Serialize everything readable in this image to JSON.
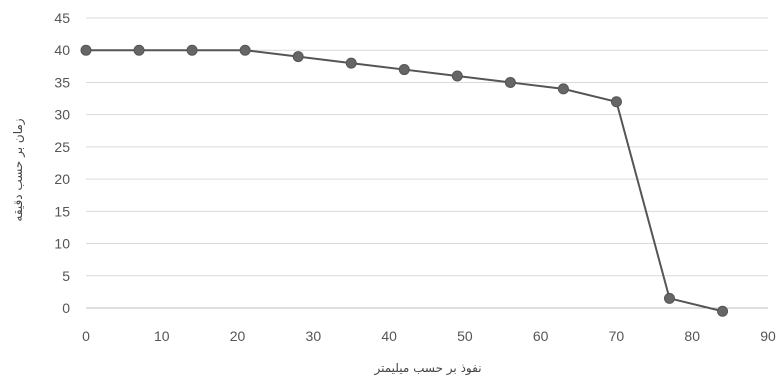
{
  "chart_data": {
    "type": "line",
    "xlabel": "نفوذ بر حسب میلیمتر",
    "ylabel": "زمان بر حسب دقیقه",
    "xlim": [
      0,
      90
    ],
    "ylim": [
      0,
      45
    ],
    "xticks": [
      0,
      10,
      20,
      30,
      40,
      50,
      60,
      70,
      80,
      90
    ],
    "yticks": [
      0,
      5,
      10,
      15,
      20,
      25,
      30,
      35,
      40,
      45
    ],
    "grid": true,
    "legend": "none",
    "colors": {
      "line": "#555555",
      "marker": "#666666",
      "grid": "#d9d9d9"
    },
    "series": [
      {
        "x": [
          0,
          7,
          14,
          21,
          28,
          35,
          42,
          49,
          56,
          63,
          70,
          77,
          84
        ],
        "y": [
          40,
          40,
          40,
          40,
          39,
          38,
          37,
          36,
          35,
          34,
          32,
          1.5,
          -0.5
        ]
      }
    ]
  }
}
